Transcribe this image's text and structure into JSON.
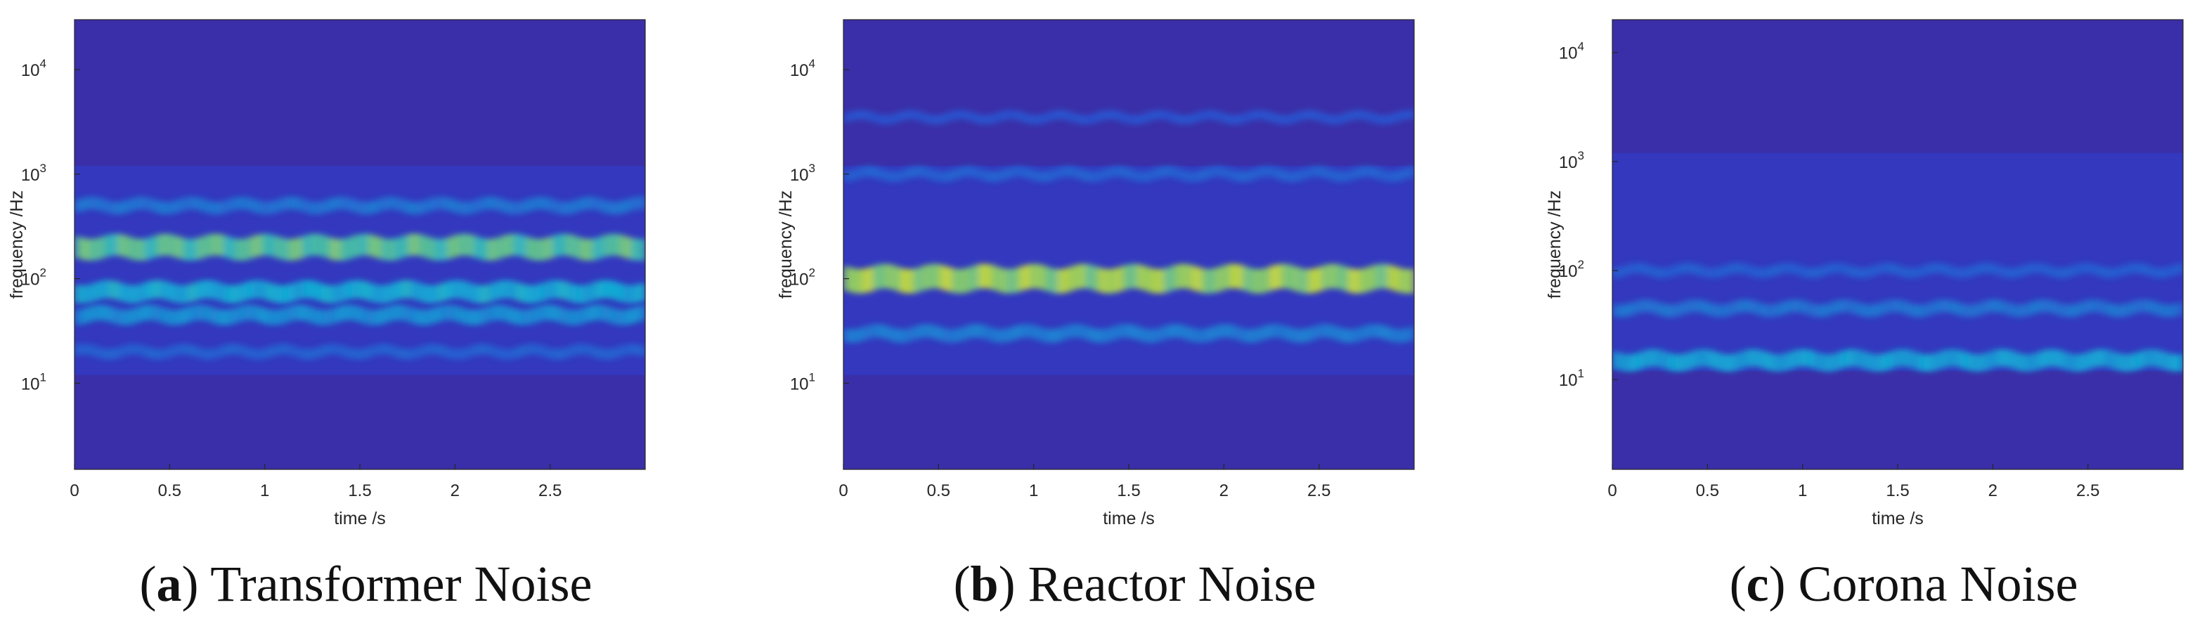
{
  "chart_data": [
    {
      "type": "heatmap",
      "panel_label": "a",
      "caption": "Transformer Noise",
      "xlabel": "time /s",
      "ylabel": "frequency /Hz",
      "xlim": [
        0,
        3
      ],
      "ylim_hz": [
        1.5,
        30000
      ],
      "yscale": "log",
      "xticks": [
        "0",
        "0.5",
        "1",
        "1.5",
        "2",
        "2.5"
      ],
      "xtick_values": [
        0,
        0.5,
        1,
        1.5,
        2,
        2.5
      ],
      "yticks": [
        {
          "base": "10",
          "exp": "1",
          "value": 10
        },
        {
          "base": "10",
          "exp": "2",
          "value": 100
        },
        {
          "base": "10",
          "exp": "3",
          "value": 1000
        },
        {
          "base": "10",
          "exp": "4",
          "value": 10000
        }
      ],
      "bands": [
        {
          "freq_hz": 200,
          "intensity": 0.8
        },
        {
          "freq_hz": 75,
          "intensity": 0.6
        },
        {
          "freq_hz": 45,
          "intensity": 0.45
        },
        {
          "freq_hz": 500,
          "intensity": 0.3
        },
        {
          "freq_hz": 20,
          "intensity": 0.2
        }
      ]
    },
    {
      "type": "heatmap",
      "panel_label": "b",
      "caption": "Reactor Noise",
      "xlabel": "time /s",
      "ylabel": "frequency /Hz",
      "xlim": [
        0,
        3
      ],
      "ylim_hz": [
        1.5,
        30000
      ],
      "yscale": "log",
      "xticks": [
        "0",
        "0.5",
        "1",
        "1.5",
        "2",
        "2.5"
      ],
      "xtick_values": [
        0,
        0.5,
        1,
        1.5,
        2,
        2.5
      ],
      "yticks": [
        {
          "base": "10",
          "exp": "1",
          "value": 10
        },
        {
          "base": "10",
          "exp": "2",
          "value": 100
        },
        {
          "base": "10",
          "exp": "3",
          "value": 1000
        },
        {
          "base": "10",
          "exp": "4",
          "value": 10000
        }
      ],
      "bands": [
        {
          "freq_hz": 100,
          "intensity": 0.95
        },
        {
          "freq_hz": 30,
          "intensity": 0.35
        },
        {
          "freq_hz": 1000,
          "intensity": 0.2
        },
        {
          "freq_hz": 3500,
          "intensity": 0.12
        }
      ]
    },
    {
      "type": "heatmap",
      "panel_label": "c",
      "caption": "Corona Noise",
      "xlabel": "time /s",
      "ylabel": "frequency /Hz",
      "xlim": [
        0,
        3
      ],
      "ylim_hz": [
        1.5,
        20000
      ],
      "yscale": "log",
      "xticks": [
        "0",
        "0.5",
        "1",
        "1.5",
        "2",
        "2.5"
      ],
      "xtick_values": [
        0,
        0.5,
        1,
        1.5,
        2,
        2.5
      ],
      "yticks": [
        {
          "base": "10",
          "exp": "1",
          "value": 10
        },
        {
          "base": "10",
          "exp": "2",
          "value": 100
        },
        {
          "base": "10",
          "exp": "3",
          "value": 1000
        },
        {
          "base": "10",
          "exp": "4",
          "value": 10000
        }
      ],
      "bands": [
        {
          "freq_hz": 15,
          "intensity": 0.55
        },
        {
          "freq_hz": 45,
          "intensity": 0.3
        },
        {
          "freq_hz": 100,
          "intensity": 0.18
        }
      ]
    }
  ],
  "colors": {
    "background": "#3a2fa8",
    "low": "#2d3fd0",
    "mid": "#12b7d6",
    "high": "#ffee00"
  }
}
